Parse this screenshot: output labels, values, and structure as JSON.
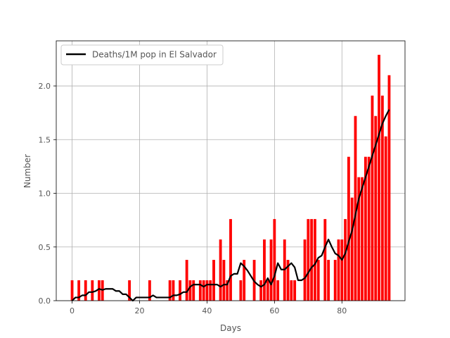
{
  "chart_data": {
    "type": "bar",
    "xlabel": "Days",
    "ylabel": "Number",
    "xlim": [
      -4.7,
      98.7
    ],
    "ylim": [
      0,
      2.42
    ],
    "xticks": [
      0,
      20,
      40,
      60,
      80
    ],
    "yticks": [
      0.0,
      0.5,
      1.0,
      1.5,
      2.0
    ],
    "grid": true,
    "legend_position": "top-left",
    "series": [
      {
        "name": "",
        "kind": "bar",
        "color": "#ff0000",
        "x": [
          0,
          2,
          4,
          6,
          8,
          9,
          17,
          23,
          29,
          30,
          32,
          34,
          35,
          36,
          38,
          39,
          40,
          41,
          42,
          44,
          45,
          46,
          47,
          50,
          51,
          54,
          56,
          57,
          58,
          59,
          60,
          61,
          63,
          64,
          65,
          66,
          69,
          70,
          71,
          72,
          73,
          75,
          76,
          78,
          79,
          80,
          81,
          82,
          83,
          84,
          85,
          86,
          87,
          88,
          89,
          90,
          91,
          92,
          93,
          94
        ],
        "values": [
          0.19,
          0.19,
          0.19,
          0.19,
          0.19,
          0.19,
          0.19,
          0.19,
          0.19,
          0.19,
          0.19,
          0.38,
          0.19,
          0.19,
          0.19,
          0.19,
          0.19,
          0.19,
          0.38,
          0.57,
          0.38,
          0.19,
          0.76,
          0.19,
          0.38,
          0.38,
          0.19,
          0.57,
          0.19,
          0.57,
          0.76,
          0.19,
          0.57,
          0.38,
          0.19,
          0.19,
          0.57,
          0.76,
          0.76,
          0.76,
          0.38,
          0.76,
          0.38,
          0.38,
          0.57,
          0.57,
          0.76,
          1.34,
          0.96,
          1.72,
          1.15,
          1.15,
          1.34,
          1.34,
          1.91,
          1.72,
          2.29,
          1.91,
          1.53,
          2.1
        ]
      },
      {
        "name": "Deaths/1M pop in El Salvador",
        "kind": "line",
        "color": "#000000",
        "x": [
          0,
          1,
          2,
          3,
          4,
          5,
          6,
          7,
          8,
          9,
          10,
          11,
          12,
          13,
          14,
          15,
          16,
          17,
          18,
          19,
          20,
          21,
          22,
          23,
          24,
          25,
          26,
          27,
          28,
          29,
          30,
          31,
          32,
          33,
          34,
          35,
          36,
          37,
          38,
          39,
          40,
          41,
          42,
          43,
          44,
          45,
          46,
          47,
          48,
          49,
          50,
          51,
          52,
          53,
          54,
          55,
          56,
          57,
          58,
          59,
          60,
          61,
          62,
          63,
          64,
          65,
          66,
          67,
          68,
          69,
          70,
          71,
          72,
          73,
          74,
          75,
          76,
          77,
          78,
          79,
          80,
          81,
          82,
          83,
          84,
          85,
          86,
          87,
          88,
          89,
          90,
          91,
          92,
          93,
          94
        ],
        "values": [
          0.0,
          0.03,
          0.03,
          0.05,
          0.05,
          0.08,
          0.08,
          0.09,
          0.11,
          0.1,
          0.11,
          0.11,
          0.11,
          0.09,
          0.09,
          0.06,
          0.06,
          0.03,
          0.0,
          0.03,
          0.03,
          0.03,
          0.03,
          0.03,
          0.05,
          0.03,
          0.03,
          0.03,
          0.03,
          0.03,
          0.05,
          0.05,
          0.06,
          0.08,
          0.08,
          0.13,
          0.15,
          0.15,
          0.15,
          0.13,
          0.15,
          0.15,
          0.15,
          0.15,
          0.13,
          0.15,
          0.15,
          0.23,
          0.25,
          0.25,
          0.35,
          0.32,
          0.28,
          0.23,
          0.18,
          0.15,
          0.13,
          0.15,
          0.21,
          0.15,
          0.23,
          0.35,
          0.29,
          0.29,
          0.32,
          0.35,
          0.31,
          0.19,
          0.19,
          0.21,
          0.26,
          0.31,
          0.34,
          0.4,
          0.42,
          0.5,
          0.57,
          0.5,
          0.44,
          0.42,
          0.38,
          0.44,
          0.55,
          0.65,
          0.8,
          0.95,
          1.05,
          1.15,
          1.25,
          1.35,
          1.45,
          1.55,
          1.65,
          1.72,
          1.78
        ]
      }
    ]
  }
}
